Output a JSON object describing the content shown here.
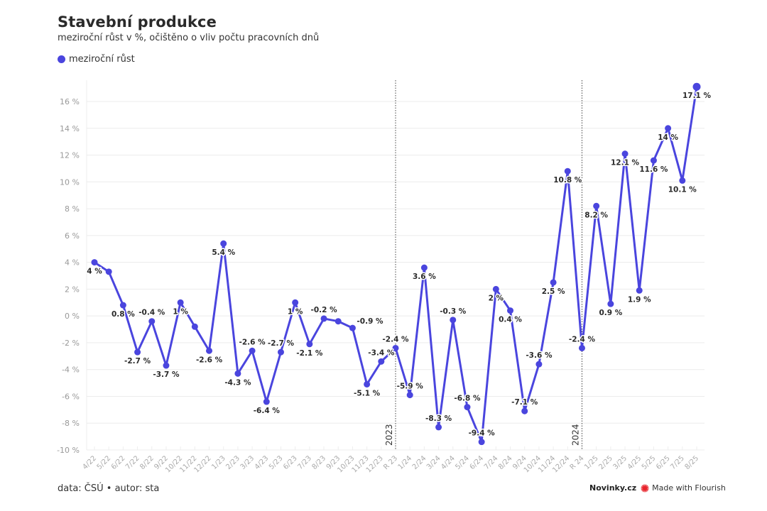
{
  "header": {
    "title": "Stavební produkce",
    "subtitle": "meziroční růst v %, očištěno o vliv počtu pracovních dnů"
  },
  "legend": {
    "items": [
      {
        "label": "meziroční růst",
        "color": "#4a45de"
      }
    ]
  },
  "footer": {
    "source": "data: ČSÚ • autor: sta",
    "brand": "Novinky.cz",
    "made_with": "Made with Flourish",
    "flourish_icon": "flourish-burst-icon"
  },
  "chart_data": {
    "type": "line",
    "title": "Stavební produkce",
    "subtitle": "meziroční růst v %, očištěno o vliv počtu pracovních dnů",
    "xlabel": "",
    "ylabel": "",
    "ylim": [
      -10,
      17
    ],
    "yticks": [
      -10,
      -8,
      -6,
      -4,
      -2,
      0,
      2,
      4,
      6,
      8,
      10,
      12,
      14,
      16
    ],
    "ytick_suffix": " %",
    "grid": true,
    "legend_position": "top-left",
    "line_color": "#4a45de",
    "categories": [
      "4/22",
      "5/22",
      "6/22",
      "7/22",
      "8/22",
      "9/22",
      "10/22",
      "11/22",
      "12/22",
      "1/23",
      "2/23",
      "3/23",
      "4/23",
      "5/23",
      "6/23",
      "7/23",
      "8/23",
      "9/23",
      "10/23",
      "11/23",
      "12/23",
      "R 23",
      "1/24",
      "2/24",
      "3/24",
      "4/24",
      "5/24",
      "6/24",
      "7/24",
      "8/24",
      "9/24",
      "10/24",
      "11/24",
      "12/24",
      "R 24",
      "1/25",
      "2/25",
      "3/25",
      "4/25",
      "5/25",
      "6/25",
      "7/25",
      "8/25"
    ],
    "series": [
      {
        "name": "meziroční růst",
        "values": [
          4,
          3.3,
          0.8,
          -2.7,
          -0.4,
          -3.7,
          1,
          -0.8,
          -2.6,
          5.4,
          -4.3,
          -2.6,
          -6.4,
          -2.7,
          1,
          -2.1,
          -0.2,
          -0.4,
          -0.9,
          -5.1,
          -3.4,
          -2.4,
          -5.9,
          3.6,
          -8.3,
          -0.3,
          -6.8,
          -9.4,
          2,
          0.4,
          -7.1,
          -3.6,
          2.5,
          10.8,
          -2.4,
          8.2,
          0.9,
          12.1,
          1.9,
          11.6,
          14,
          10.1,
          17.1
        ],
        "labels": [
          "4 %",
          "",
          "0.8 %",
          "-2.7 %",
          "-0.4 %",
          "-3.7 %",
          "1 %",
          "",
          "-2.6 %",
          "5.4 %",
          "-4.3 %",
          "-2.6 %",
          "-6.4 %",
          "-2.7 %",
          "1 %",
          "-2.1 %",
          "-0.2 %",
          "",
          "-0.9 %",
          "-5.1 %",
          "-3.4 %",
          "-2.4 %",
          "-5.9 %",
          "3.6 %",
          "-8.3 %",
          "-0.3 %",
          "-6.8 %",
          "-9.4 %",
          "2 %",
          "0.4 %",
          "-7.1 %",
          "-3.6 %",
          "2.5 %",
          "10.8 %",
          "-2.4 %",
          "8.2 %",
          "0.9 %",
          "12.1 %",
          "1.9 %",
          "11.6 %",
          "14 %",
          "10.1 %",
          "17.1 %"
        ],
        "label_positions": [
          "below",
          "none",
          "below",
          "below",
          "above",
          "below",
          "below",
          "none",
          "below",
          "below",
          "below",
          "above",
          "below",
          "above",
          "below",
          "below",
          "above",
          "none",
          "right",
          "below",
          "above",
          "above",
          "above",
          "below",
          "above",
          "above",
          "above",
          "above",
          "below",
          "below",
          "above",
          "above",
          "below",
          "below",
          "above",
          "below",
          "below",
          "below",
          "below",
          "below",
          "below",
          "below",
          "below"
        ]
      }
    ],
    "annotations": [
      {
        "category": "R 23",
        "text": "2023",
        "type": "vertical-dotted-line"
      },
      {
        "category": "R 24",
        "text": "2024",
        "type": "vertical-dotted-line"
      }
    ]
  }
}
